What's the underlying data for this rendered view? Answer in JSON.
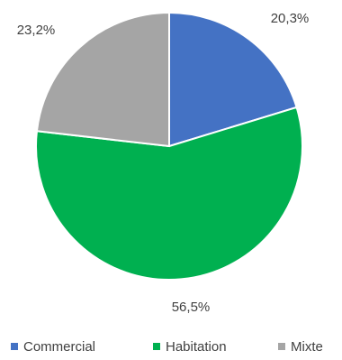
{
  "chart_data": {
    "type": "pie",
    "title": "",
    "categories": [
      "Commercial",
      "Habitation",
      "Mixte"
    ],
    "values": [
      20.3,
      56.5,
      23.2
    ],
    "labels": [
      "20,3%",
      "56,5%",
      "23,2%"
    ],
    "colors": [
      "#4472C4",
      "#00B050",
      "#A5A5A5"
    ],
    "legend_position": "bottom",
    "start_angle_deg": 0,
    "direction": "clockwise"
  }
}
